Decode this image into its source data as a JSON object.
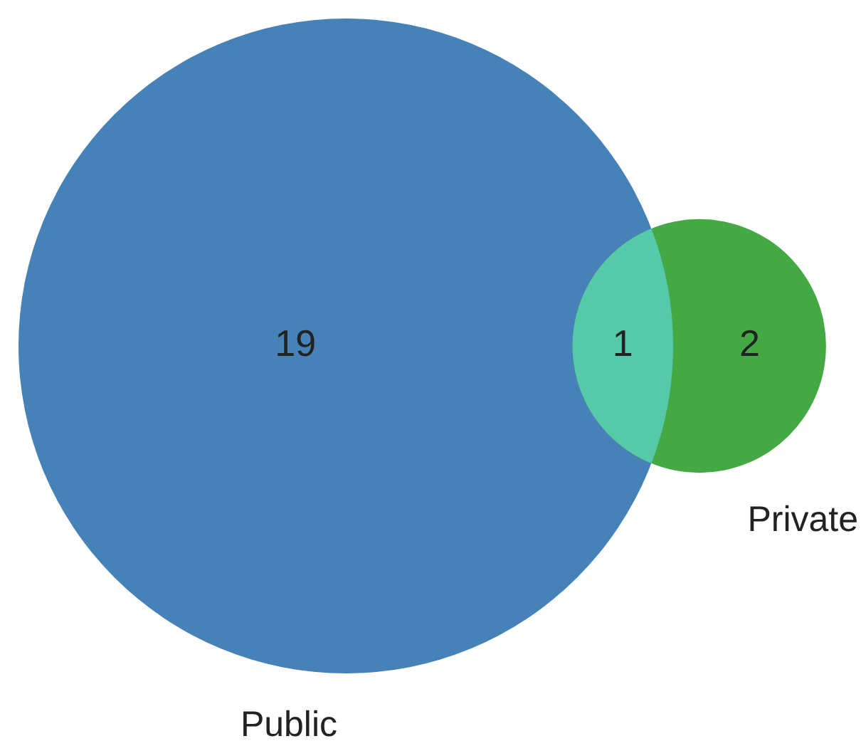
{
  "chart_data": {
    "type": "other",
    "categories": [
      "Public",
      null,
      "Private"
    ],
    "values": [
      19,
      1,
      2
    ],
    "colors": [
      "#4682b8",
      "#56c9a8",
      "#44a944"
    ],
    "data_labels": true
  }
}
